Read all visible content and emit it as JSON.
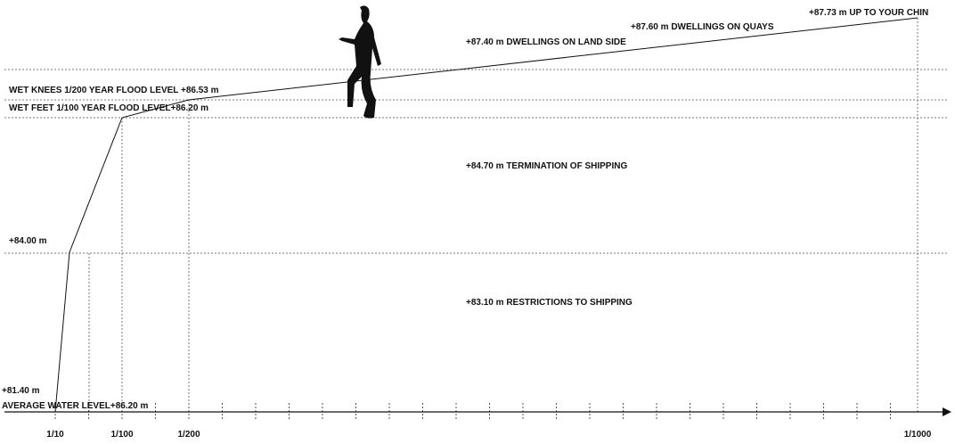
{
  "levels": {
    "chin": "+87.73 m UP TO YOUR CHIN",
    "quays": "+87.60 m DWELLINGS  ON QUAYS",
    "land_side": "+87.40 m DWELLINGS  ON LAND SIDE",
    "wet_knees": "WET KNEES 1/200 YEAR FLOOD LEVEL +86.53 m",
    "wet_feet": "WET FEET 1/100 YEAR FLOOD LEVEL+86.20 m",
    "termination": "+84.70 m TERMINATION OF SHIPPING",
    "level_84": "+84.00 m",
    "restrictions": "+83.10 m RESTRICTIONS TO SHIPPING",
    "level_81": "+81.40 m",
    "average": "AVERAGE WATER LEVEL+86.20 m"
  },
  "axis": {
    "labels": [
      "1/10",
      "1/100",
      "1/200",
      "1/1000"
    ]
  }
}
